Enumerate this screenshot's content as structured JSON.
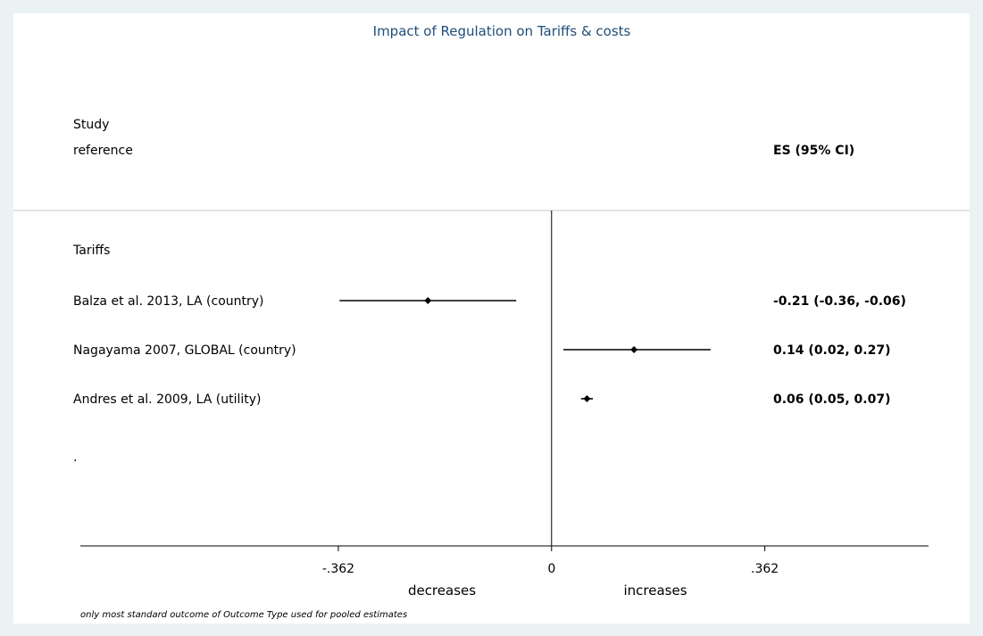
{
  "chart_data": {
    "type": "forest",
    "title": "Impact of Regulation on Tariffs & costs",
    "column_headers": {
      "study_line1": "Study",
      "study_line2": "reference",
      "es": "ES (95% CI)"
    },
    "group_label": "Tariffs",
    "studies": [
      {
        "label": "Balza et al. 2013, LA (country)",
        "es": -0.21,
        "ci_low": -0.36,
        "ci_high": -0.06,
        "es_text": "-0.21 (-0.36, -0.06)"
      },
      {
        "label": "Nagayama 2007, GLOBAL (country)",
        "es": 0.14,
        "ci_low": 0.02,
        "ci_high": 0.27,
        "es_text": "0.14 (0.02, 0.27)"
      },
      {
        "label": "Andres et al. 2009, LA (utility)",
        "es": 0.06,
        "ci_low": 0.05,
        "ci_high": 0.07,
        "es_text": "0.06 (0.05, 0.07)"
      }
    ],
    "trailing_label": ".",
    "x_ticks": [
      {
        "value": -0.362,
        "label": "-.362"
      },
      {
        "value": 0,
        "label": "0"
      },
      {
        "value": 0.362,
        "label": ".362"
      }
    ],
    "xlim": [
      -0.8,
      0.64
    ],
    "direction_labels": {
      "left": "decreases",
      "right": "increases"
    },
    "footnote": "only most standard outcome of Outcome Type used for pooled estimates",
    "colors": {
      "background": "#eaf2f3",
      "panel": "#ffffff",
      "title": "#1f4e79",
      "ink": "#000000",
      "rule": "#c8c8c8"
    }
  }
}
